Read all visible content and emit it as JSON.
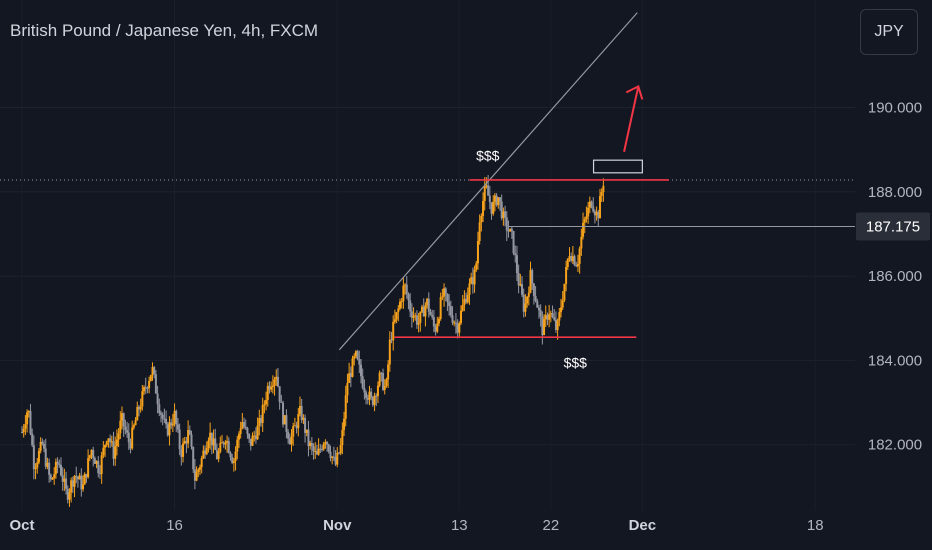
{
  "header": {
    "title": "British Pound / Japanese Yen, 4h, FXCM",
    "currency_button": "JPY"
  },
  "colors": {
    "background": "#131722",
    "candle_up": "#f7a21b",
    "candle_down": "#9598a1",
    "level_line": "#f23645",
    "arrow": "#f23645",
    "trendline": "#9598a1",
    "price_line": "#9598a1",
    "price_label_bg": "#2a2e39"
  },
  "annotations": {
    "top_liquidity": "$$$",
    "bottom_liquidity": "$$$"
  },
  "chart_data": {
    "type": "candlestick",
    "ylim": [
      180.45,
      192.55
    ],
    "y_ticks": [
      182.0,
      184.0,
      186.0,
      188.0,
      190.0
    ],
    "y_tick_labels": [
      "182.000",
      "184.000",
      "186.000",
      "188.000",
      "190.000"
    ],
    "x_ticks": [
      {
        "label": "Oct",
        "day": 1,
        "bold": true
      },
      {
        "label": "16",
        "day": 16,
        "bold": false
      },
      {
        "label": "Nov",
        "day": 32,
        "bold": true
      },
      {
        "label": "13",
        "day": 44,
        "bold": false
      },
      {
        "label": "22",
        "day": 53,
        "bold": false
      },
      {
        "label": "Dec",
        "day": 62,
        "bold": true
      },
      {
        "label": "18",
        "day": 79,
        "bold": false
      }
    ],
    "current_price": 187.175,
    "current_price_label": "187.175",
    "resistance_level": 188.28,
    "support_level": 184.55,
    "path_points": [
      [
        0.0,
        182.3
      ],
      [
        0.6,
        182.9
      ],
      [
        1.2,
        181.5
      ],
      [
        2.0,
        182.0
      ],
      [
        2.8,
        181.1
      ],
      [
        3.6,
        181.6
      ],
      [
        4.4,
        180.8
      ],
      [
        5.2,
        181.3
      ],
      [
        6.0,
        181.0
      ],
      [
        6.8,
        181.9
      ],
      [
        7.6,
        181.4
      ],
      [
        8.4,
        182.3
      ],
      [
        9.0,
        181.8
      ],
      [
        9.8,
        182.6
      ],
      [
        10.6,
        182.0
      ],
      [
        11.4,
        182.8
      ],
      [
        12.2,
        183.4
      ],
      [
        12.8,
        183.8
      ],
      [
        13.4,
        183.0
      ],
      [
        14.2,
        182.3
      ],
      [
        15.0,
        182.7
      ],
      [
        15.6,
        181.8
      ],
      [
        16.4,
        182.3
      ],
      [
        17.0,
        181.2
      ],
      [
        17.6,
        181.6
      ],
      [
        18.4,
        182.3
      ],
      [
        19.2,
        181.7
      ],
      [
        20.0,
        182.2
      ],
      [
        20.8,
        181.6
      ],
      [
        21.6,
        182.6
      ],
      [
        22.4,
        182.0
      ],
      [
        23.4,
        182.5
      ],
      [
        24.2,
        183.4
      ],
      [
        25.0,
        183.7
      ],
      [
        25.6,
        182.7
      ],
      [
        26.4,
        182.1
      ],
      [
        27.4,
        182.8
      ],
      [
        28.2,
        182.0
      ],
      [
        29.0,
        181.7
      ],
      [
        29.8,
        182.2
      ],
      [
        30.8,
        181.5
      ],
      [
        31.4,
        182.0
      ],
      [
        32.0,
        183.5
      ],
      [
        32.8,
        184.1
      ],
      [
        33.6,
        183.4
      ],
      [
        34.4,
        183.0
      ],
      [
        35.2,
        183.6
      ],
      [
        35.8,
        183.3
      ],
      [
        36.2,
        184.5
      ],
      [
        37.0,
        185.2
      ],
      [
        37.6,
        185.8
      ],
      [
        38.2,
        185.2
      ],
      [
        39.0,
        184.9
      ],
      [
        39.8,
        185.4
      ],
      [
        40.6,
        184.7
      ],
      [
        41.4,
        185.6
      ],
      [
        42.2,
        185.1
      ],
      [
        42.8,
        184.8
      ],
      [
        43.6,
        185.5
      ],
      [
        44.6,
        186.1
      ],
      [
        45.0,
        187.4
      ],
      [
        45.6,
        188.1
      ],
      [
        46.2,
        187.6
      ],
      [
        46.8,
        187.9
      ],
      [
        47.4,
        187.3
      ],
      [
        48.2,
        186.9
      ],
      [
        48.8,
        185.9
      ],
      [
        49.4,
        185.2
      ],
      [
        50.0,
        186.0
      ],
      [
        50.6,
        185.4
      ],
      [
        51.2,
        184.7
      ],
      [
        51.8,
        185.2
      ],
      [
        52.6,
        184.7
      ],
      [
        53.2,
        185.6
      ],
      [
        53.8,
        186.6
      ],
      [
        54.6,
        186.3
      ],
      [
        55.2,
        187.2
      ],
      [
        56.0,
        187.8
      ],
      [
        56.6,
        187.4
      ],
      [
        57.2,
        188.3
      ]
    ]
  }
}
